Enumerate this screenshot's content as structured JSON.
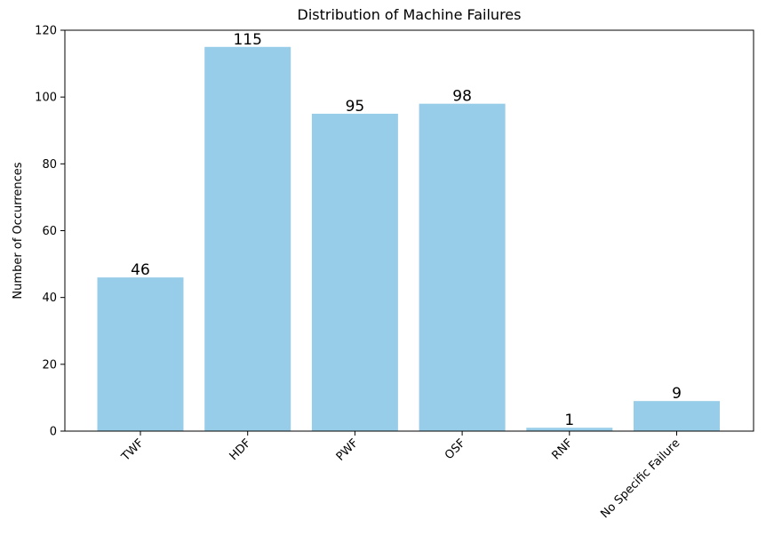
{
  "chart_data": {
    "type": "bar",
    "title": "Distribution of Machine Failures",
    "xlabel": "",
    "ylabel": "Number of Occurrences",
    "categories": [
      "TWF",
      "HDF",
      "PWF",
      "OSF",
      "RNF",
      "No Specific Failure"
    ],
    "values": [
      46,
      115,
      95,
      98,
      1,
      9
    ],
    "data_labels": [
      "46",
      "115",
      "95",
      "98",
      "1",
      "9"
    ],
    "yticks": [
      0,
      20,
      40,
      60,
      80,
      100,
      120
    ],
    "ylim": [
      0,
      120
    ],
    "bar_color": "#97cde8",
    "grid": false,
    "legend": "none"
  }
}
